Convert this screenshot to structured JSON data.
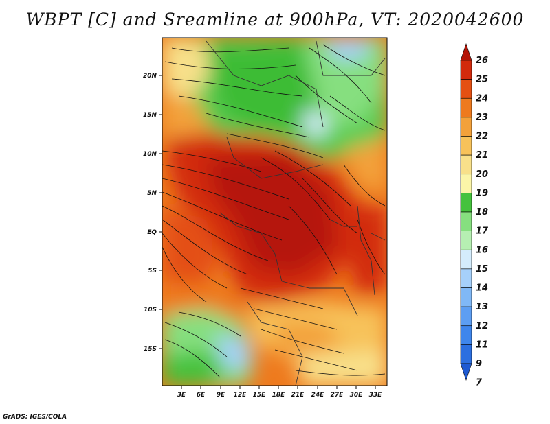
{
  "title": "WBPT [C] and Sreamline at 900hPa, VT: 2020042600",
  "credit": "GrADS: IGES/COLA",
  "map": {
    "lat_ticks": [
      "20N",
      "15N",
      "10N",
      "5N",
      "EQ",
      "5S",
      "10S",
      "15S"
    ],
    "lon_ticks": [
      "3E",
      "6E",
      "9E",
      "12E",
      "15E",
      "18E",
      "21E",
      "24E",
      "27E",
      "30E",
      "33E"
    ]
  },
  "colorbar": {
    "labels": [
      "7",
      "9",
      "11",
      "12",
      "13",
      "14",
      "15",
      "16",
      "17",
      "18",
      "19",
      "20",
      "21",
      "22",
      "23",
      "24",
      "25",
      "26"
    ],
    "colors": [
      "#1e5ad2",
      "#2c6fe0",
      "#3f86ec",
      "#5d9ef2",
      "#80b8f6",
      "#a6d0fa",
      "#d4ecfc",
      "#b6efb2",
      "#86df7f",
      "#45c23d",
      "#fbf5a8",
      "#f8e08a",
      "#f7c25a",
      "#f3a13a",
      "#ee7a1e",
      "#e45012",
      "#d22a0c",
      "#b51407"
    ]
  },
  "colors": {
    "dry_north": "#45c23d",
    "humid_core": "#d22a0c",
    "south_cool": "#a6d0fa"
  }
}
